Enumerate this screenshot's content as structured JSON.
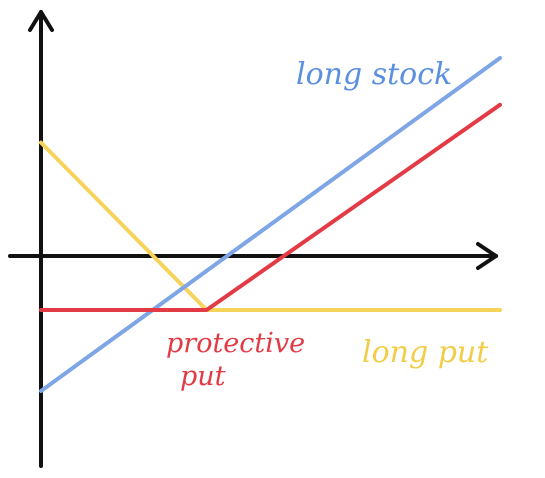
{
  "chart_data": {
    "type": "line",
    "title": "",
    "xlabel": "",
    "ylabel": "",
    "grid": false,
    "legend": "none",
    "series": [
      {
        "name": "long stock",
        "color": "#7ea6e6",
        "points": [
          [
            0,
            -7.5
          ],
          [
            25.5,
            11
          ]
        ]
      },
      {
        "name": "long put",
        "color": "#f6d35a",
        "points": [
          [
            0,
            6.3
          ],
          [
            9.2,
            -3
          ],
          [
            25.5,
            -3
          ]
        ]
      },
      {
        "name": "protective put",
        "color": "#e33b45",
        "points": [
          [
            0,
            -3
          ],
          [
            9.2,
            -3
          ],
          [
            25.5,
            8.4
          ]
        ]
      }
    ],
    "annotations": [
      {
        "text": "long stock",
        "series": "long stock"
      },
      {
        "text": "long put",
        "series": "long put"
      },
      {
        "text": "protective",
        "series": "protective put"
      },
      {
        "text": "put",
        "series": "protective put"
      }
    ]
  }
}
